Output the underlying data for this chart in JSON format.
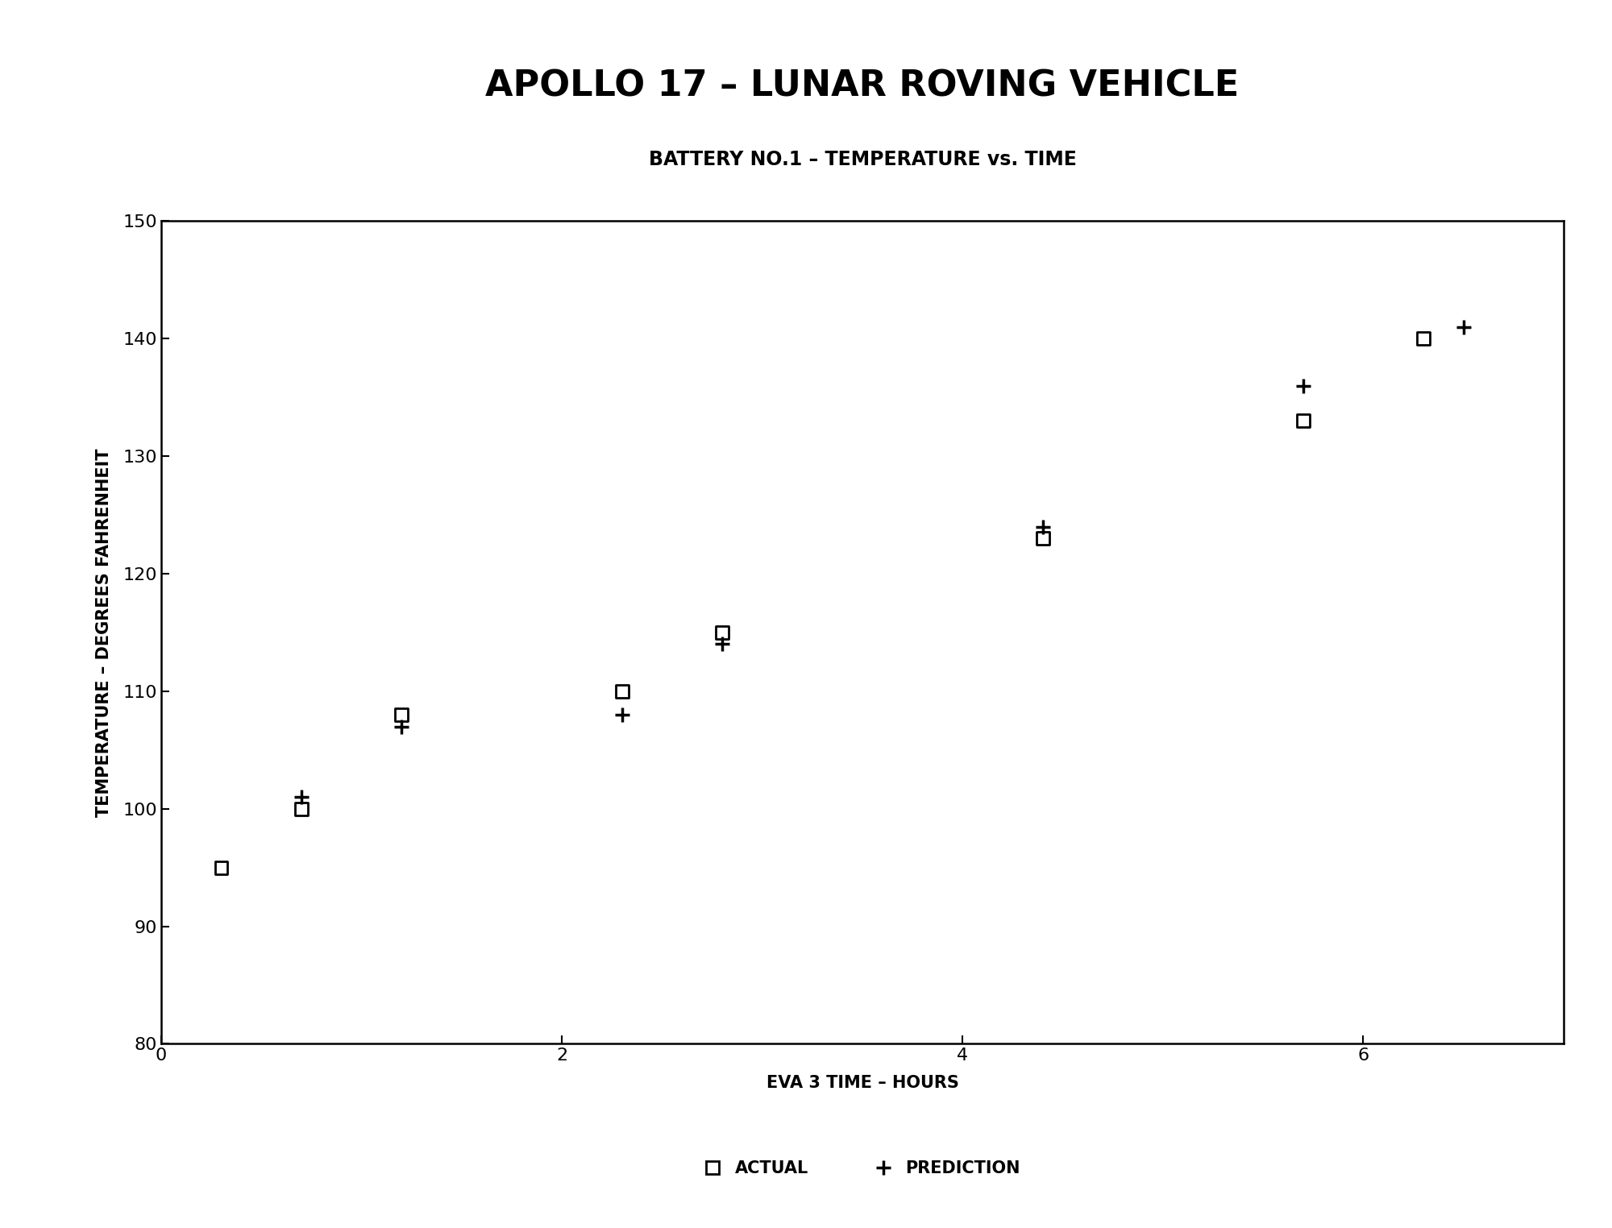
{
  "title": "APOLLO 17 – LUNAR ROVING VEHICLE",
  "subtitle": "BATTERY NO.1 – TEMPERATURE vs. TIME",
  "xlabel": "EVA 3 TIME – HOURS",
  "ylabel": "TEMPERATURE – DEGREES FAHRENHEIT",
  "xlim": [
    0,
    7
  ],
  "ylim": [
    80,
    150
  ],
  "xticks": [
    0,
    2,
    4,
    6
  ],
  "yticks": [
    80,
    90,
    100,
    110,
    120,
    130,
    140,
    150
  ],
  "actual_x": [
    0.3,
    0.7,
    1.2,
    2.3,
    2.8,
    4.4,
    5.7,
    6.3
  ],
  "actual_y": [
    95,
    100,
    108,
    110,
    115,
    123,
    133,
    140
  ],
  "prediction_x": [
    0.7,
    1.2,
    2.3,
    2.8,
    4.4,
    5.7,
    6.5
  ],
  "prediction_y": [
    101,
    107,
    108,
    114,
    124,
    136,
    141
  ],
  "legend_actual": "ACTUAL",
  "legend_prediction": "PREDICTION",
  "title_fontsize": 32,
  "subtitle_fontsize": 17,
  "label_fontsize": 15,
  "tick_fontsize": 16,
  "legend_fontsize": 15,
  "marker_size_square": 130,
  "marker_size_plus": 160,
  "background_color": "#ffffff",
  "text_color": "#000000"
}
